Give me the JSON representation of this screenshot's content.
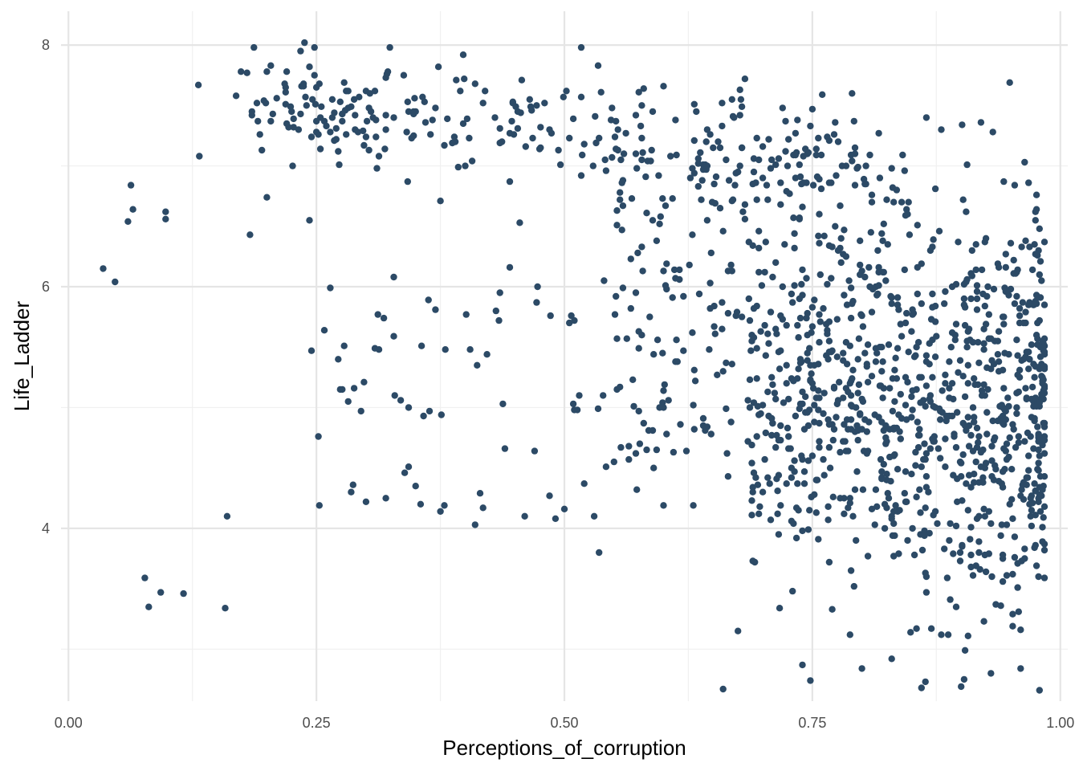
{
  "chart_data": {
    "type": "scatter",
    "title": "",
    "xlabel": "Perceptions_of_corruption",
    "ylabel": "Life_Ladder",
    "xlim": [
      -0.0075,
      1.0075
    ],
    "ylim": [
      2.57,
      8.28
    ],
    "x_major_ticks": [
      0,
      0.25,
      0.5,
      0.75,
      1
    ],
    "x_tick_labels": [
      "0.00",
      "0.25",
      "0.50",
      "0.75",
      "1.00"
    ],
    "x_minor_ticks": [
      0.125,
      0.375,
      0.625,
      0.875
    ],
    "y_major_ticks": [
      4,
      6,
      8
    ],
    "y_tick_labels": [
      "4",
      "6",
      "8"
    ],
    "y_minor_ticks": [
      3,
      5,
      7
    ],
    "grid": true,
    "legend": "none",
    "point_color": "#2c4a66",
    "marker": "circle",
    "n_points": 1550,
    "series": [
      {
        "points": [
          [
            0.035,
            6.15
          ],
          [
            0.047,
            6.04
          ],
          [
            0.06,
            6.54
          ],
          [
            0.063,
            6.84
          ],
          [
            0.065,
            6.64
          ],
          [
            0.098,
            6.62
          ],
          [
            0.098,
            6.56
          ],
          [
            0.077,
            3.59
          ],
          [
            0.081,
            3.35
          ],
          [
            0.093,
            3.47
          ],
          [
            0.116,
            3.46
          ],
          [
            0.158,
            3.34
          ],
          [
            0.16,
            4.1
          ],
          [
            0.131,
            7.67
          ],
          [
            0.132,
            7.08
          ],
          [
            0.169,
            7.58
          ],
          [
            0.174,
            7.78
          ],
          [
            0.183,
            6.43
          ],
          [
            0.185,
            7.42
          ],
          [
            0.19,
            7.52
          ],
          [
            0.2,
            6.74
          ],
          [
            0.204,
            7.83
          ],
          [
            0.21,
            7.56
          ],
          [
            0.218,
            7.68
          ],
          [
            0.22,
            7.78
          ],
          [
            0.225,
            7.45
          ],
          [
            0.232,
            7.3
          ],
          [
            0.238,
            8.02
          ],
          [
            0.24,
            7.5
          ],
          [
            0.243,
            6.55
          ],
          [
            0.245,
            5.47
          ],
          [
            0.248,
            7.98
          ],
          [
            0.25,
            7.65
          ],
          [
            0.252,
            7.26
          ],
          [
            0.255,
            7.49
          ],
          [
            0.258,
            5.64
          ],
          [
            0.266,
            7.4
          ],
          [
            0.27,
            7.22
          ],
          [
            0.272,
            5.4
          ],
          [
            0.274,
            5.15
          ],
          [
            0.28,
            7.26
          ],
          [
            0.285,
            7.49
          ],
          [
            0.287,
            4.36
          ],
          [
            0.292,
            7.28
          ],
          [
            0.3,
            4.22
          ],
          [
            0.305,
            7.45
          ],
          [
            0.31,
            7.24
          ],
          [
            0.32,
            4.25
          ],
          [
            0.322,
            7.78
          ],
          [
            0.328,
            6.08
          ],
          [
            0.335,
            5.06
          ],
          [
            0.342,
            6.87
          ],
          [
            0.35,
            4.35
          ],
          [
            0.355,
            4.2
          ],
          [
            0.356,
            5.51
          ],
          [
            0.358,
            4.93
          ],
          [
            0.36,
            7.36
          ],
          [
            0.37,
            7.48
          ],
          [
            0.375,
            6.71
          ],
          [
            0.38,
            5.48
          ],
          [
            0.39,
            7.2
          ],
          [
            0.4,
            7.0
          ],
          [
            0.405,
            5.48
          ],
          [
            0.41,
            4.03
          ],
          [
            0.412,
            5.35
          ],
          [
            0.415,
            4.29
          ],
          [
            0.42,
            7.62
          ],
          [
            0.422,
            5.44
          ],
          [
            0.43,
            7.4
          ],
          [
            0.435,
            5.95
          ],
          [
            0.438,
            5.03
          ],
          [
            0.44,
            4.66
          ],
          [
            0.445,
            6.16
          ],
          [
            0.455,
            6.53
          ],
          [
            0.46,
            4.1
          ],
          [
            0.47,
            4.64
          ],
          [
            0.473,
            6.0
          ],
          [
            0.48,
            7.52
          ],
          [
            0.485,
            4.27
          ],
          [
            0.5,
            4.16
          ],
          [
            0.502,
            7.62
          ],
          [
            0.505,
            5.7
          ],
          [
            0.51,
            4.98
          ],
          [
            0.515,
            5.1
          ],
          [
            0.52,
            4.37
          ],
          [
            0.53,
            4.1
          ],
          [
            0.535,
            3.8
          ],
          [
            0.54,
            6.05
          ],
          [
            0.55,
            4.55
          ],
          [
            0.56,
            7.1
          ],
          [
            0.565,
            4.57
          ],
          [
            0.575,
            5.63
          ],
          [
            0.585,
            4.81
          ],
          [
            0.59,
            4.5
          ],
          [
            0.6,
            5.0
          ],
          [
            0.61,
            4.63
          ],
          [
            0.62,
            5.92
          ],
          [
            0.63,
            4.19
          ],
          [
            0.64,
            4.85
          ],
          [
            0.65,
            7.15
          ],
          [
            0.66,
            2.67
          ],
          [
            0.665,
            4.43
          ],
          [
            0.675,
            3.15
          ],
          [
            0.68,
            6.62
          ],
          [
            0.69,
            3.73
          ],
          [
            0.7,
            6.9
          ],
          [
            0.71,
            4.87
          ],
          [
            0.72,
            7.48
          ],
          [
            0.73,
            3.48
          ],
          [
            0.74,
            2.87
          ],
          [
            0.75,
            7.47
          ],
          [
            0.76,
            7.59
          ],
          [
            0.77,
            3.33
          ],
          [
            0.78,
            7.0
          ],
          [
            0.79,
            7.6
          ],
          [
            0.8,
            2.84
          ],
          [
            0.81,
            6.7
          ],
          [
            0.82,
            5.3
          ],
          [
            0.83,
            2.92
          ],
          [
            0.84,
            6.7
          ],
          [
            0.85,
            4.45
          ],
          [
            0.86,
            2.68
          ],
          [
            0.87,
            3.17
          ],
          [
            0.88,
            7.3
          ],
          [
            0.89,
            5.5
          ],
          [
            0.9,
            2.69
          ],
          [
            0.91,
            5.9
          ],
          [
            0.92,
            7.36
          ],
          [
            0.93,
            2.8
          ],
          [
            0.94,
            3.36
          ],
          [
            0.95,
            6.36
          ],
          [
            0.96,
            3.16
          ],
          [
            0.97,
            4.1
          ],
          [
            0.975,
            3.86
          ],
          [
            0.983,
            4.73
          ]
        ]
      }
    ]
  }
}
